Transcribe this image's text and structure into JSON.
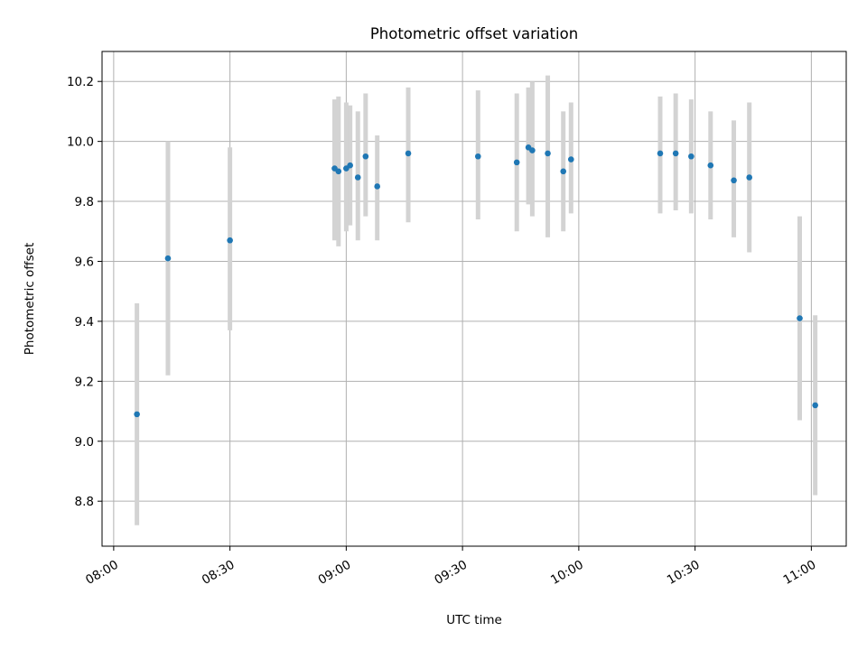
{
  "chart_data": {
    "type": "scatter",
    "title": "Photometric offset variation",
    "xlabel": "UTC time",
    "ylabel": "Photometric offset",
    "xlim": [
      "07:57",
      "11:09"
    ],
    "ylim": [
      8.65,
      10.3
    ],
    "grid": true,
    "x_tick_labels": [
      "08:00",
      "08:30",
      "09:00",
      "09:30",
      "10:00",
      "10:30",
      "11:00"
    ],
    "y_tick_labels": [
      "8.8",
      "9.0",
      "9.2",
      "9.4",
      "9.6",
      "9.8",
      "10.0",
      "10.2"
    ],
    "series": [
      {
        "marker_color": "#1f77b4",
        "errorbar_color": "#d3d3d3",
        "points": [
          {
            "x": "08:06",
            "y": 9.09,
            "ylow": 8.72,
            "yhigh": 9.46
          },
          {
            "x": "08:14",
            "y": 9.61,
            "ylow": 9.22,
            "yhigh": 10.0
          },
          {
            "x": "08:30",
            "y": 9.67,
            "ylow": 9.37,
            "yhigh": 9.98
          },
          {
            "x": "08:57",
            "y": 9.91,
            "ylow": 9.67,
            "yhigh": 10.14
          },
          {
            "x": "08:58",
            "y": 9.9,
            "ylow": 9.65,
            "yhigh": 10.15
          },
          {
            "x": "09:00",
            "y": 9.91,
            "ylow": 9.7,
            "yhigh": 10.13
          },
          {
            "x": "09:01",
            "y": 9.92,
            "ylow": 9.72,
            "yhigh": 10.12
          },
          {
            "x": "09:03",
            "y": 9.88,
            "ylow": 9.67,
            "yhigh": 10.1
          },
          {
            "x": "09:05",
            "y": 9.95,
            "ylow": 9.75,
            "yhigh": 10.16
          },
          {
            "x": "09:08",
            "y": 9.85,
            "ylow": 9.67,
            "yhigh": 10.02
          },
          {
            "x": "09:16",
            "y": 9.96,
            "ylow": 9.73,
            "yhigh": 10.18
          },
          {
            "x": "09:34",
            "y": 9.95,
            "ylow": 9.74,
            "yhigh": 10.17
          },
          {
            "x": "09:44",
            "y": 9.93,
            "ylow": 9.7,
            "yhigh": 10.16
          },
          {
            "x": "09:47",
            "y": 9.98,
            "ylow": 9.79,
            "yhigh": 10.18
          },
          {
            "x": "09:48",
            "y": 9.97,
            "ylow": 9.75,
            "yhigh": 10.2
          },
          {
            "x": "09:52",
            "y": 9.96,
            "ylow": 9.68,
            "yhigh": 10.22
          },
          {
            "x": "09:56",
            "y": 9.9,
            "ylow": 9.7,
            "yhigh": 10.1
          },
          {
            "x": "09:58",
            "y": 9.94,
            "ylow": 9.76,
            "yhigh": 10.13
          },
          {
            "x": "10:21",
            "y": 9.96,
            "ylow": 9.76,
            "yhigh": 10.15
          },
          {
            "x": "10:25",
            "y": 9.96,
            "ylow": 9.77,
            "yhigh": 10.16
          },
          {
            "x": "10:29",
            "y": 9.95,
            "ylow": 9.76,
            "yhigh": 10.14
          },
          {
            "x": "10:34",
            "y": 9.92,
            "ylow": 9.74,
            "yhigh": 10.1
          },
          {
            "x": "10:40",
            "y": 9.87,
            "ylow": 9.68,
            "yhigh": 10.07
          },
          {
            "x": "10:44",
            "y": 9.88,
            "ylow": 9.63,
            "yhigh": 10.13
          },
          {
            "x": "10:57",
            "y": 9.41,
            "ylow": 9.07,
            "yhigh": 9.75
          },
          {
            "x": "11:01",
            "y": 9.12,
            "ylow": 8.82,
            "yhigh": 9.42
          }
        ]
      }
    ]
  }
}
